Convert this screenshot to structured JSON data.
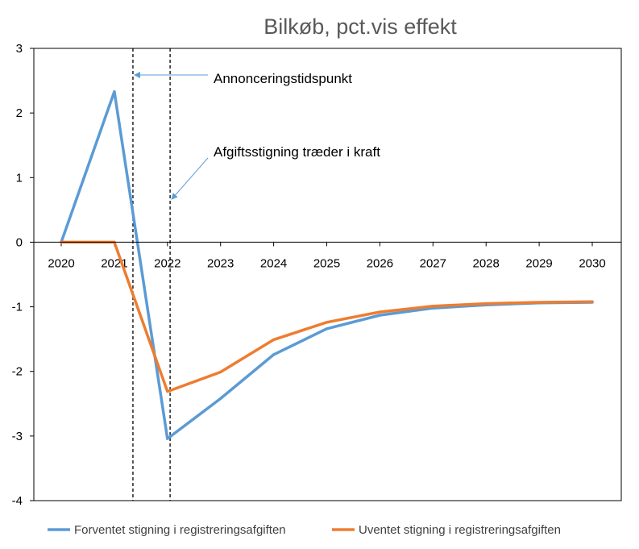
{
  "chart_data": {
    "type": "line",
    "title": "Bilkøb, pct.vis effekt",
    "xlabel": "",
    "ylabel": "",
    "x": [
      "2020",
      "2021",
      "2022",
      "2023",
      "2024",
      "2025",
      "2026",
      "2027",
      "2028",
      "2029",
      "2030"
    ],
    "ylim": [
      -4,
      3
    ],
    "yticks": [
      "3",
      "2",
      "1",
      "0",
      "-1",
      "-2",
      "-3",
      "-4"
    ],
    "grid": false,
    "legend_position": "bottom",
    "series": [
      {
        "name": "Forventet stigning i registreringsafgiften",
        "color": "#5B9BD5",
        "values": [
          0.0,
          2.33,
          -3.04,
          -2.42,
          -1.74,
          -1.34,
          -1.13,
          -1.02,
          -0.97,
          -0.94,
          -0.93
        ]
      },
      {
        "name": "Uventet stigning i registreringsafgiften",
        "color": "#ED7D31",
        "values": [
          0.0,
          0.0,
          -2.31,
          -2.01,
          -1.51,
          -1.24,
          -1.08,
          -0.99,
          -0.95,
          -0.93,
          -0.92
        ]
      }
    ],
    "vertical_lines": [
      {
        "x": 1.35,
        "label": "Annonceringstidspunkt"
      },
      {
        "x": 2.05,
        "label": "Afgiftsstigning træder i kraft"
      }
    ],
    "annotations": [
      "Annonceringstidspunkt",
      "Afgiftsstigning træder i kraft"
    ]
  }
}
